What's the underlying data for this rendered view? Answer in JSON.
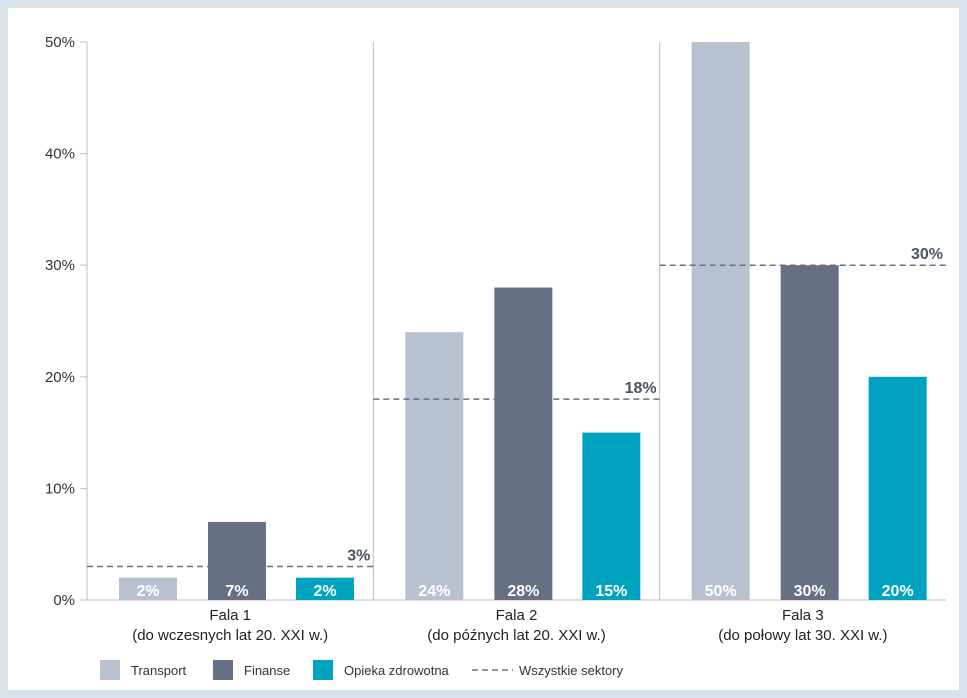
{
  "chart_data": {
    "type": "bar",
    "y_ticks": [
      "0%",
      "10%",
      "20%",
      "30%",
      "40%",
      "50%"
    ],
    "ylim": [
      0,
      50
    ],
    "grid": false,
    "legend_position": "bottom-left",
    "groups": [
      {
        "line1": "Fala 1",
        "line2": "(do wczesnych lat 20. XXI w.)"
      },
      {
        "line1": "Fala 2",
        "line2": "(do późnych lat 20. XXI w.)"
      },
      {
        "line1": "Fala 3",
        "line2": "(do połowy lat 30. XXI w.)"
      }
    ],
    "series": [
      {
        "name": "Transport",
        "color": "#b7c1d0",
        "values": [
          2,
          24,
          50
        ],
        "labels": [
          "2%",
          "24%",
          "50%"
        ]
      },
      {
        "name": "Finanse",
        "color": "#667085",
        "values": [
          7,
          28,
          30
        ],
        "labels": [
          "7%",
          "28%",
          "30%"
        ]
      },
      {
        "name": "Opieka zdrowotna",
        "color": "#00a3bf",
        "values": [
          2,
          15,
          20
        ],
        "labels": [
          "2%",
          "15%",
          "20%"
        ]
      }
    ],
    "average": {
      "name": "Wszystkie sektory",
      "color": "#667085",
      "values": [
        3,
        18,
        30
      ],
      "labels": [
        "3%",
        "18%",
        "30%"
      ]
    }
  }
}
